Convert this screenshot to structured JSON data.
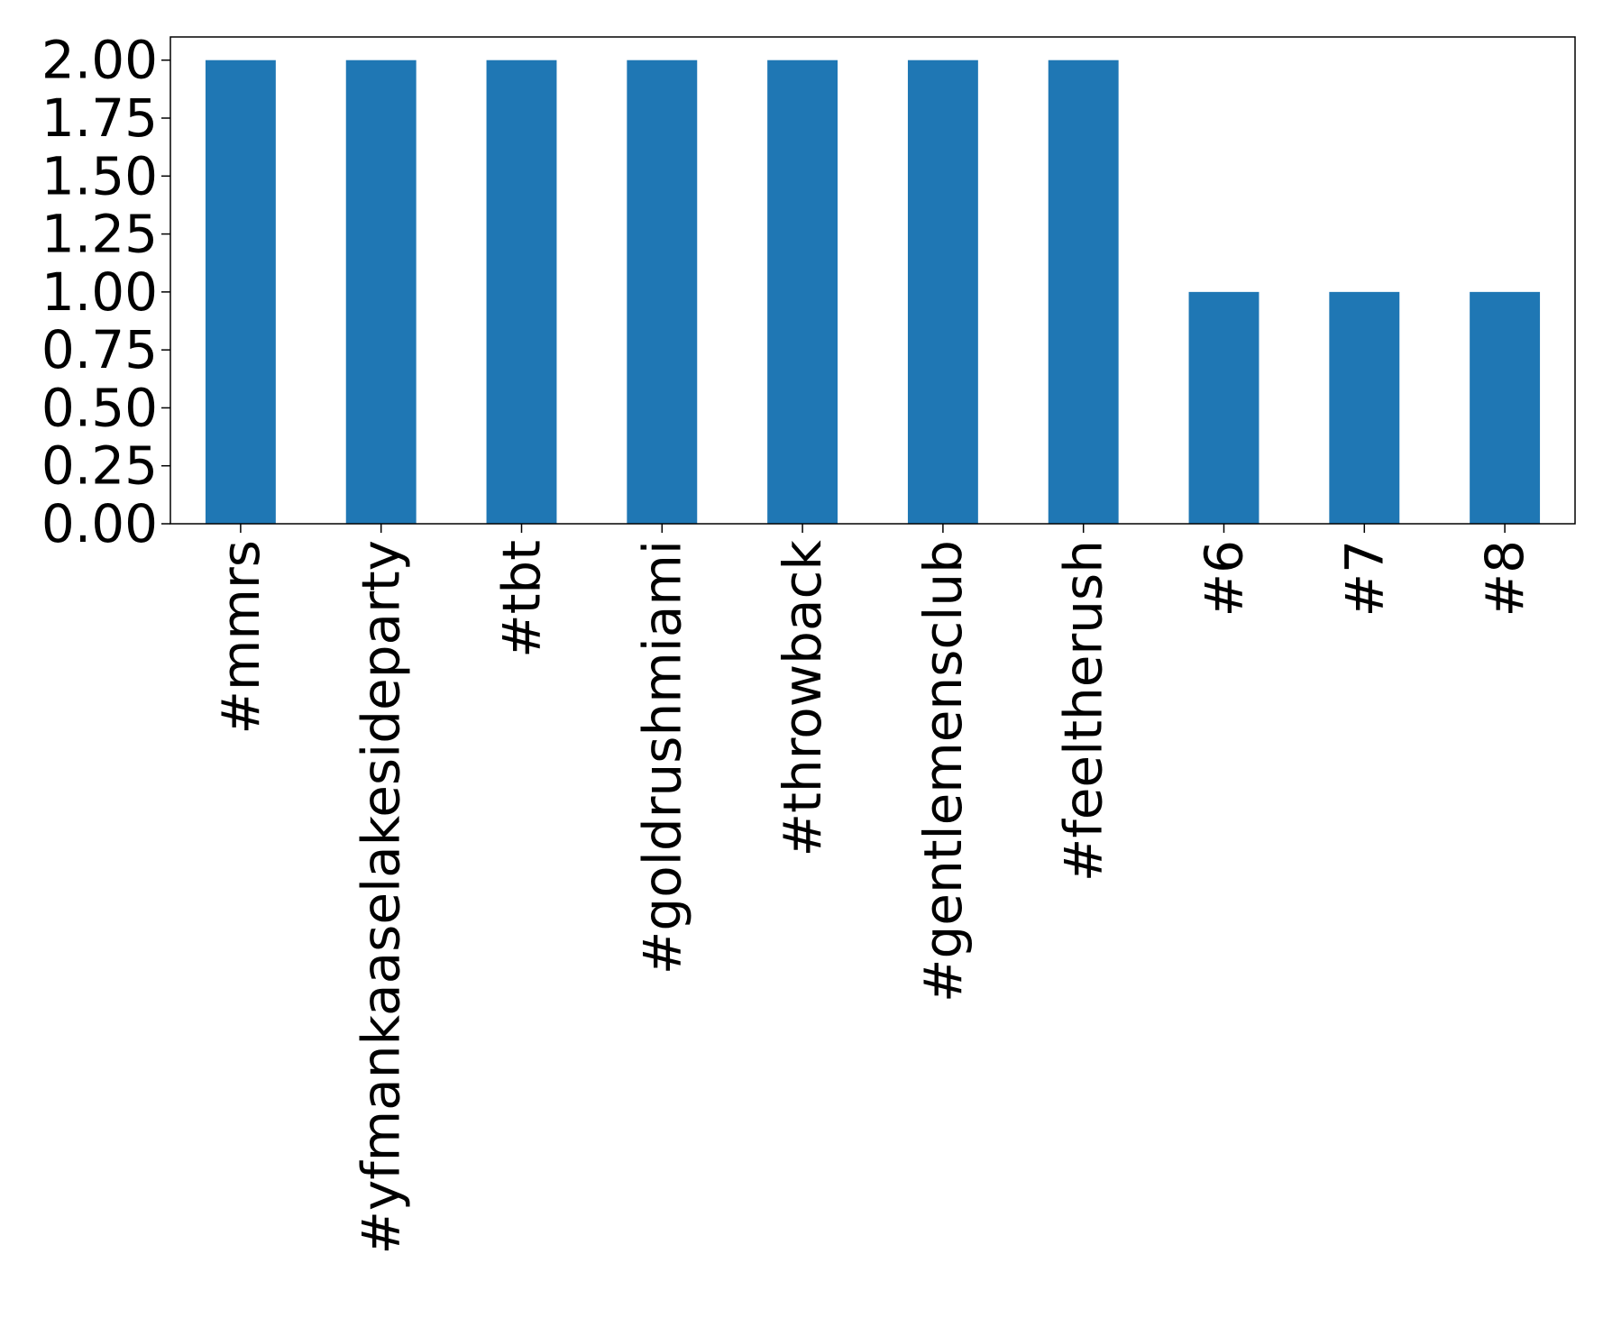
{
  "chart_data": {
    "type": "bar",
    "title": "",
    "xlabel": "",
    "ylabel": "",
    "categories": [
      "#mmrs",
      "#yfmankaaselakesideparty",
      "#tbt",
      "#goldrushmiami",
      "#throwback",
      "#gentlemensclub",
      "#feeltherush",
      "#6",
      "#7",
      "#8"
    ],
    "values": [
      2,
      2,
      2,
      2,
      2,
      2,
      2,
      1,
      1,
      1
    ],
    "ylim": [
      0,
      2.1
    ],
    "yticks": [
      0,
      0.25,
      0.5,
      0.75,
      1,
      1.25,
      1.5,
      1.75,
      2
    ],
    "ytick_labels": [
      "0.00",
      "0.25",
      "0.50",
      "0.75",
      "1.00",
      "1.25",
      "1.50",
      "1.75",
      "2.00"
    ],
    "bar_color": "#1f77b4",
    "grid": false,
    "legend": "none"
  }
}
